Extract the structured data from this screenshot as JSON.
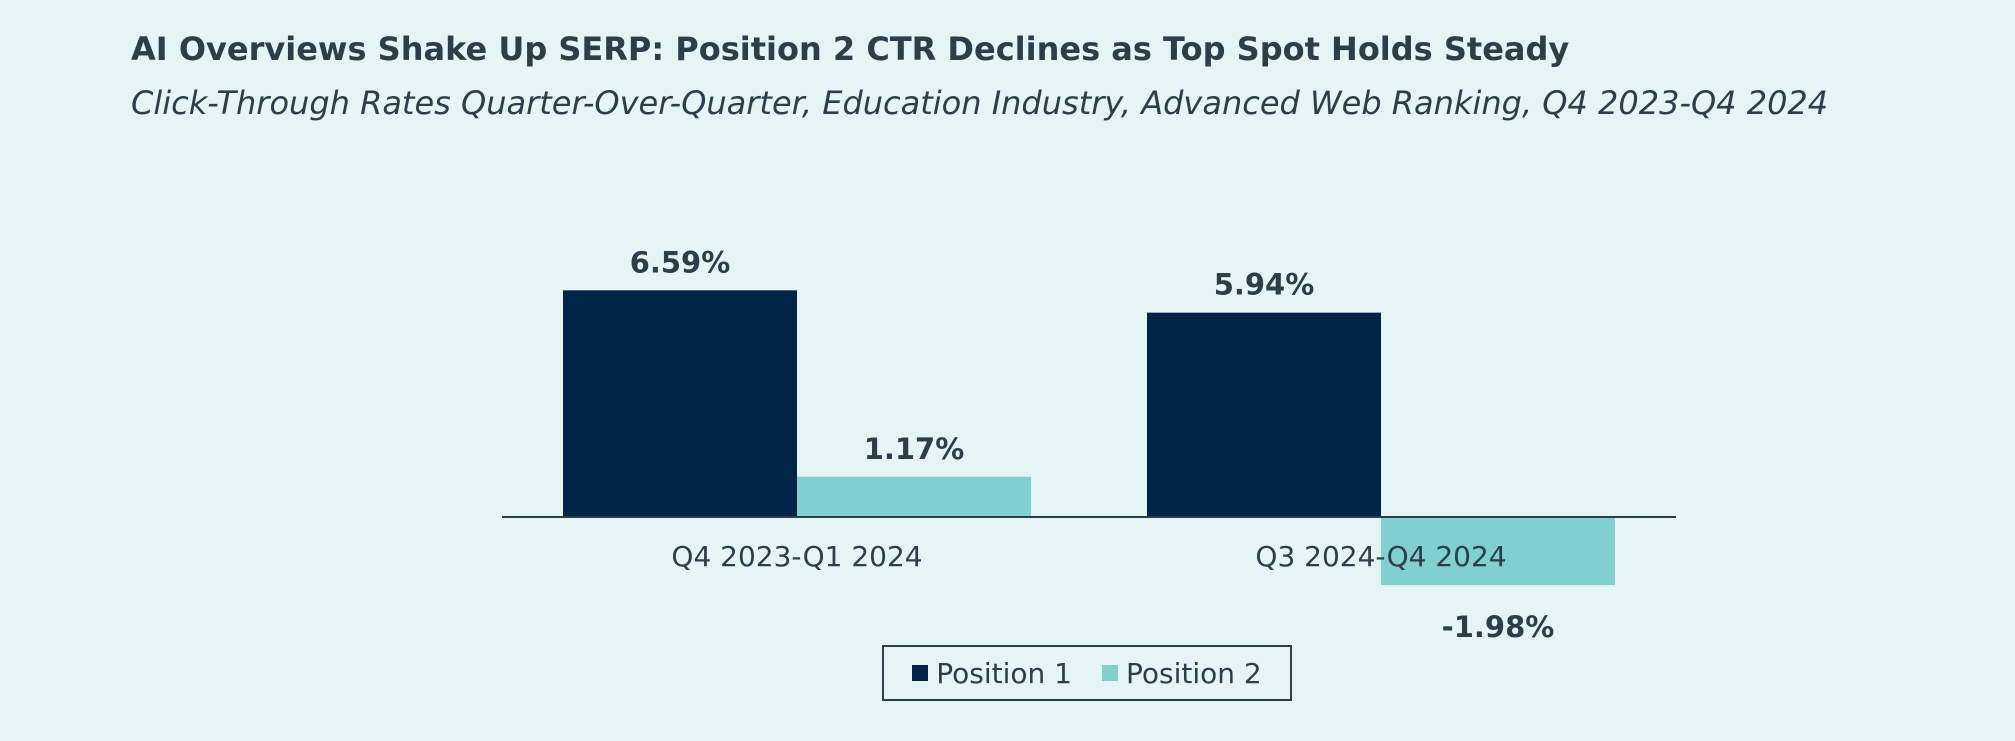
{
  "title": "AI Overviews Shake Up SERP: Position 2 CTR Declines as Top Spot Holds Steady",
  "subtitle": "Click-Through Rates Quarter-Over-Quarter, Education Industry, Advanced Web Ranking, Q4 2023-Q4 2024",
  "colors": {
    "background": "#e5f4f4",
    "text": "#2d3e4a",
    "position1": "#002547",
    "position2": "#7fd0cf",
    "axis": "#2d3e4a"
  },
  "chart_data": {
    "type": "bar",
    "categories": [
      "Q4 2023-Q1 2024",
      "Q3 2024-Q4 2024"
    ],
    "series": [
      {
        "name": "Position 1",
        "values": [
          6.59,
          5.94
        ],
        "labels": [
          "6.59%",
          "5.94%"
        ]
      },
      {
        "name": "Position 2",
        "values": [
          1.17,
          -1.98
        ],
        "labels": [
          "1.17%",
          "-1.98%"
        ]
      }
    ],
    "title": "AI Overviews Shake Up SERP: Position 2 CTR Declines as Top Spot Holds Steady",
    "subtitle": "Click-Through Rates Quarter-Over-Quarter, Education Industry, Advanced Web Ranking, Q4 2023-Q4 2024",
    "xlabel": "",
    "ylabel": "",
    "ylim": [
      -2.5,
      7.0
    ],
    "grid": false,
    "legend": "bottom-center"
  },
  "legend": {
    "items": [
      {
        "label": "Position 1"
      },
      {
        "label": "Position 2"
      }
    ]
  }
}
